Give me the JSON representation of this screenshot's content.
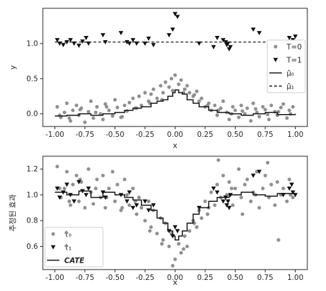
{
  "colors": {
    "control": "#909090",
    "treated": "#111111",
    "line": "#111111"
  },
  "chart_data": [
    {
      "type": "scatter",
      "panel": "top",
      "xlabel": "x",
      "ylabel": "y",
      "xlim": [
        -1.1,
        1.1
      ],
      "ylim": [
        -0.18,
        1.5
      ],
      "xticks": [
        "-1.00",
        "-0.75",
        "-0.50",
        "-0.25",
        "0.00",
        "0.25",
        "0.50",
        "0.75",
        "1.00"
      ],
      "yticks": [
        "0.0",
        "0.5",
        "1.0"
      ],
      "grid": false,
      "legend_position": "center-right",
      "legend": [
        "T=0",
        "T=1",
        "μ̂₀",
        "μ̂₁"
      ],
      "series": [
        {
          "name": "T=0",
          "kind": "points",
          "marker": "circle",
          "x": [
            -0.98,
            -0.95,
            -0.92,
            -0.9,
            -0.87,
            -0.85,
            -0.82,
            -0.8,
            -0.78,
            -0.75,
            -0.72,
            -0.7,
            -0.68,
            -0.65,
            -0.62,
            -0.6,
            -0.58,
            -0.55,
            -0.52,
            -0.5,
            -0.48,
            -0.45,
            -0.42,
            -0.4,
            -0.38,
            -0.35,
            -0.32,
            -0.3,
            -0.28,
            -0.25,
            -0.22,
            -0.2,
            -0.18,
            -0.15,
            -0.12,
            -0.1,
            -0.08,
            -0.05,
            -0.03,
            0.0,
            0.03,
            0.05,
            0.08,
            0.1,
            0.12,
            0.15,
            0.18,
            0.2,
            0.22,
            0.25,
            0.28,
            0.3,
            0.33,
            0.35,
            0.38,
            0.4,
            0.43,
            0.45,
            0.48,
            0.5,
            0.53,
            0.55,
            0.58,
            0.6,
            0.63,
            0.65,
            0.68,
            0.7,
            0.73,
            0.75,
            0.78,
            0.8,
            0.83,
            0.85,
            0.88,
            0.9,
            0.93,
            0.95,
            0.98,
            -0.96,
            -0.88,
            -0.79,
            -0.66,
            -0.57,
            -0.44,
            -0.33,
            -0.21,
            -0.11,
            -0.02,
            0.07,
            0.16,
            0.27,
            0.36,
            0.47,
            0.56,
            0.67,
            0.77,
            0.86,
            0.96
          ],
          "y": [
            0.1,
            -0.05,
            0.02,
            0.15,
            -0.1,
            0.05,
            0.12,
            -0.02,
            0.08,
            -0.12,
            0.03,
            0.18,
            -0.06,
            0.1,
            0.0,
            -0.08,
            0.14,
            0.05,
            -0.03,
            0.2,
            0.09,
            -0.05,
            0.12,
            0.04,
            0.16,
            0.22,
            0.08,
            0.25,
            0.12,
            0.3,
            0.18,
            0.28,
            0.35,
            0.22,
            0.4,
            0.3,
            0.45,
            0.38,
            0.5,
            0.55,
            0.42,
            0.48,
            0.35,
            0.4,
            0.3,
            0.25,
            0.32,
            0.18,
            0.22,
            0.1,
            0.15,
            0.05,
            0.12,
            -0.02,
            0.08,
            0.18,
            0.02,
            -0.08,
            0.1,
            0.05,
            -0.05,
            0.12,
            0.0,
            0.08,
            -0.1,
            0.15,
            0.02,
            -0.04,
            0.1,
            0.06,
            -0.08,
            0.12,
            0.03,
            -0.02,
            0.09,
            0.14,
            -0.06,
            0.05,
            0.1,
            -0.02,
            -0.06,
            0.06,
            0.02,
            0.1,
            -0.04,
            0.08,
            0.15,
            0.2,
            0.33,
            0.3,
            0.27,
            0.12,
            0.05,
            0.0,
            0.04,
            0.07,
            -0.01,
            0.03,
            0.0
          ]
        },
        {
          "name": "T=1",
          "kind": "points",
          "marker": "triangle-down",
          "x": [
            -0.98,
            -0.96,
            -0.93,
            -0.9,
            -0.87,
            -0.84,
            -0.8,
            -0.77,
            -0.74,
            -0.72,
            -0.6,
            -0.58,
            -0.45,
            -0.4,
            -0.38,
            -0.35,
            -0.32,
            -0.25,
            -0.22,
            -0.18,
            -0.05,
            -0.02,
            0.0,
            0.02,
            0.2,
            0.32,
            0.35,
            0.4,
            0.42,
            0.43,
            0.44,
            0.45,
            0.46,
            0.65,
            0.7,
            0.9,
            0.95,
            0.97,
            0.98,
            1.0
          ],
          "y": [
            1.05,
            1.0,
            0.98,
            1.02,
            1.05,
            1.0,
            0.97,
            1.03,
            1.08,
            1.0,
            1.12,
            1.02,
            1.15,
            1.02,
            1.0,
            1.05,
            1.0,
            1.0,
            1.07,
            0.98,
            1.12,
            1.2,
            1.42,
            1.38,
            1.0,
            0.95,
            1.08,
            1.05,
            1.02,
            0.98,
            1.0,
            0.92,
            0.95,
            1.2,
            1.15,
            1.0,
            1.08,
            1.02,
            1.05,
            1.1
          ]
        },
        {
          "name": "μ̂₀",
          "kind": "step",
          "style": "solid",
          "x": [
            -1.0,
            -0.9,
            -0.8,
            -0.7,
            -0.6,
            -0.5,
            -0.42,
            -0.35,
            -0.28,
            -0.2,
            -0.15,
            -0.1,
            -0.06,
            -0.02,
            0.0,
            0.03,
            0.06,
            0.1,
            0.15,
            0.2,
            0.28,
            0.35,
            0.45,
            0.55,
            0.65,
            0.75,
            0.85,
            1.0
          ],
          "y": [
            -0.03,
            -0.02,
            0.0,
            -0.02,
            0.0,
            0.02,
            0.05,
            0.08,
            0.1,
            0.15,
            0.18,
            0.2,
            0.25,
            0.3,
            0.34,
            0.3,
            0.28,
            0.2,
            0.15,
            0.1,
            0.05,
            0.02,
            0.0,
            -0.02,
            0.0,
            0.02,
            -0.01,
            0.0
          ]
        },
        {
          "name": "μ̂₁",
          "kind": "line",
          "style": "dashed",
          "x": [
            -1.0,
            1.0
          ],
          "y": [
            1.02,
            1.02
          ]
        }
      ]
    },
    {
      "type": "scatter",
      "panel": "bottom",
      "xlabel": "x",
      "ylabel": "추정된 효과",
      "xlim": [
        -1.1,
        1.1
      ],
      "ylim": [
        0.42,
        1.3
      ],
      "xticks": [
        "-1.00",
        "-0.75",
        "-0.50",
        "-0.25",
        "0.00",
        "0.25",
        "0.50",
        "0.75",
        "1.00"
      ],
      "yticks": [
        "0.6",
        "0.8",
        "1.0",
        "1.2"
      ],
      "grid": false,
      "legend_position": "bottom-left",
      "legend": [
        "τ̂₀",
        "τ̂₁",
        "CATE"
      ],
      "series": [
        {
          "name": "τ̂₀",
          "kind": "points",
          "marker": "circle",
          "x": [
            -0.98,
            -0.95,
            -0.92,
            -0.9,
            -0.87,
            -0.85,
            -0.82,
            -0.8,
            -0.78,
            -0.75,
            -0.72,
            -0.7,
            -0.68,
            -0.65,
            -0.62,
            -0.6,
            -0.58,
            -0.55,
            -0.52,
            -0.5,
            -0.48,
            -0.45,
            -0.42,
            -0.4,
            -0.38,
            -0.35,
            -0.32,
            -0.3,
            -0.28,
            -0.25,
            -0.22,
            -0.2,
            -0.18,
            -0.15,
            -0.12,
            -0.1,
            -0.08,
            -0.05,
            -0.03,
            0.0,
            0.03,
            0.05,
            0.08,
            0.1,
            0.12,
            0.15,
            0.18,
            0.2,
            0.22,
            0.25,
            0.28,
            0.3,
            0.33,
            0.35,
            0.38,
            0.4,
            0.43,
            0.45,
            0.48,
            0.5,
            0.53,
            0.55,
            0.58,
            0.6,
            0.63,
            0.65,
            0.68,
            0.7,
            0.73,
            0.75,
            0.78,
            0.8,
            0.83,
            0.85,
            0.88,
            0.9,
            0.93,
            0.95,
            0.98,
            -0.96,
            -0.88,
            -0.79,
            -0.66,
            -0.57,
            -0.44,
            -0.33,
            -0.21,
            -0.11,
            -0.02,
            0.07,
            0.16,
            0.27,
            0.36,
            0.47,
            0.56,
            0.67,
            0.77,
            0.86,
            0.96
          ],
          "y": [
            1.22,
            0.98,
            1.05,
            1.18,
            0.92,
            1.08,
            1.15,
            0.95,
            1.1,
            0.9,
            1.2,
            1.02,
            0.93,
            1.12,
            0.98,
            1.15,
            0.9,
            1.05,
            1.18,
            0.95,
            1.08,
            0.88,
            1.12,
            1.0,
            0.92,
            1.05,
            0.85,
            0.98,
            0.9,
            0.8,
            0.95,
            0.75,
            0.88,
            0.7,
            0.82,
            0.65,
            0.78,
            0.6,
            0.7,
            0.5,
            0.62,
            0.55,
            0.68,
            0.6,
            0.72,
            0.8,
            0.75,
            0.88,
            0.82,
            0.95,
            0.9,
            1.02,
            0.92,
            1.08,
            0.98,
            1.15,
            1.0,
            1.1,
            0.92,
            1.05,
            1.2,
            0.98,
            1.08,
            1.12,
            0.95,
            1.02,
            1.18,
            0.9,
            1.05,
            1.15,
            0.98,
            1.08,
            0.92,
            1.1,
            1.0,
            1.05,
            0.95,
            1.12,
            0.98,
            1.05,
            0.95,
            1.12,
            1.05,
            0.98,
            0.9,
            0.95,
            0.72,
            0.62,
            0.45,
            0.58,
            0.78,
            0.85,
            1.27,
            1.05,
            0.85,
            1.0,
            1.25,
            0.65,
            1.0
          ]
        },
        {
          "name": "τ̂₁",
          "kind": "points",
          "marker": "triangle-down",
          "x": [
            -0.98,
            -0.96,
            -0.93,
            -0.9,
            -0.87,
            -0.84,
            -0.8,
            -0.77,
            -0.74,
            -0.72,
            -0.6,
            -0.58,
            -0.45,
            -0.4,
            -0.38,
            -0.35,
            -0.32,
            -0.25,
            -0.22,
            -0.18,
            -0.05,
            -0.02,
            0.0,
            0.02,
            0.2,
            0.32,
            0.35,
            0.4,
            0.42,
            0.43,
            0.44,
            0.45,
            0.46,
            0.65,
            0.7,
            0.9,
            0.95,
            0.97,
            0.98,
            1.0
          ],
          "y": [
            1.05,
            0.98,
            1.02,
            1.08,
            1.0,
            0.95,
            1.1,
            1.03,
            1.0,
            1.05,
            1.02,
            0.98,
            1.0,
            0.95,
            1.02,
            0.9,
            0.92,
            0.95,
            0.88,
            0.92,
            0.72,
            0.68,
            0.75,
            0.72,
            0.9,
            1.05,
            1.02,
            0.95,
            0.98,
            0.92,
            0.95,
            0.9,
            1.0,
            1.15,
            1.18,
            1.0,
            1.05,
            1.08,
            1.02,
            1.0
          ]
        },
        {
          "name": "CATE",
          "kind": "step",
          "style": "solid",
          "x": [
            -1.0,
            -0.9,
            -0.8,
            -0.7,
            -0.6,
            -0.5,
            -0.42,
            -0.35,
            -0.28,
            -0.2,
            -0.15,
            -0.1,
            -0.06,
            -0.02,
            0.0,
            0.03,
            0.06,
            0.1,
            0.15,
            0.2,
            0.28,
            0.35,
            0.45,
            0.55,
            0.65,
            0.75,
            0.85,
            1.0
          ],
          "y": [
            1.02,
            1.0,
            1.03,
            0.98,
            1.02,
            1.0,
            0.98,
            0.96,
            0.92,
            0.88,
            0.82,
            0.78,
            0.72,
            0.68,
            0.65,
            0.68,
            0.72,
            0.78,
            0.85,
            0.9,
            0.95,
            0.98,
            1.0,
            1.02,
            1.0,
            0.99,
            1.01,
            1.0
          ]
        }
      ]
    }
  ]
}
